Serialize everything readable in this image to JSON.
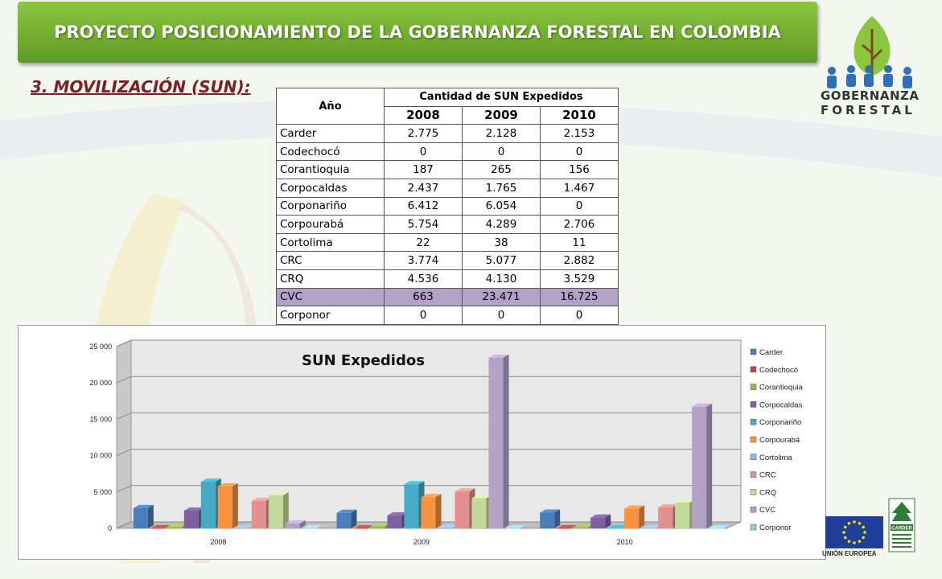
{
  "header": {
    "title": "PROYECTO POSICIONAMIENTO DE LA GOBERNANZA FORESTAL EN COLOMBIA"
  },
  "section_title": "3. MOVILIZACIÓN (SUN):",
  "logo": {
    "line1": "GOBERNANZA",
    "line2": "FORESTAL"
  },
  "table": {
    "col_year": "Año",
    "col_group": "Cantidad de SUN Expedidos",
    "years": [
      "2008",
      "2009",
      "2010"
    ],
    "rows": [
      {
        "name": "Carder",
        "values": [
          "2.775",
          "2.128",
          "2.153"
        ]
      },
      {
        "name": "Codechocó",
        "values": [
          "0",
          "0",
          "0"
        ]
      },
      {
        "name": "Corantioquia",
        "values": [
          "187",
          "265",
          "156"
        ]
      },
      {
        "name": "Corpocaldas",
        "values": [
          "2.437",
          "1.765",
          "1.467"
        ]
      },
      {
        "name": "Corponariño",
        "values": [
          "6.412",
          "6.054",
          "0"
        ]
      },
      {
        "name": "Corpourabá",
        "values": [
          "5.754",
          "4.289",
          "2.706"
        ]
      },
      {
        "name": "Cortolima",
        "values": [
          "22",
          "38",
          "11"
        ]
      },
      {
        "name": "CRC",
        "values": [
          "3.774",
          "5.077",
          "2.882"
        ]
      },
      {
        "name": "CRQ",
        "values": [
          "4.536",
          "4.130",
          "3.529"
        ]
      },
      {
        "name": "CVC",
        "values": [
          "663",
          "23.471",
          "16.725"
        ]
      },
      {
        "name": "Corponor",
        "values": [
          "0",
          "0",
          "0"
        ]
      }
    ]
  },
  "chart_data": {
    "type": "bar",
    "title": "SUN Expedidos",
    "categories": [
      "2008",
      "2009",
      "2010"
    ],
    "ylim": [
      0,
      25000
    ],
    "yticks": [
      0,
      5000,
      10000,
      15000,
      20000,
      25000
    ],
    "ytick_labels": [
      "0",
      "5 000",
      "10 000",
      "15 000",
      "20 000",
      "25 000"
    ],
    "legend_position": "right",
    "grid": true,
    "series": [
      {
        "name": "Carder",
        "color": "#4a7ebb",
        "values": [
          2775,
          2128,
          2153
        ]
      },
      {
        "name": "Codechocó",
        "color": "#be4b48",
        "values": [
          0,
          0,
          0
        ]
      },
      {
        "name": "Corantioquia",
        "color": "#98b954",
        "values": [
          187,
          265,
          156
        ]
      },
      {
        "name": "Corpocaldas",
        "color": "#7d60a0",
        "values": [
          2437,
          1765,
          1467
        ]
      },
      {
        "name": "Corponariño",
        "color": "#46aac5",
        "values": [
          6412,
          6054,
          0
        ]
      },
      {
        "name": "Corpourabá",
        "color": "#f69240",
        "values": [
          5754,
          4289,
          2706
        ]
      },
      {
        "name": "Cortolima",
        "color": "#94b6de",
        "values": [
          22,
          38,
          11
        ]
      },
      {
        "name": "CRC",
        "color": "#e3908e",
        "values": [
          3774,
          5077,
          2882
        ]
      },
      {
        "name": "CRQ",
        "color": "#c3d89b",
        "values": [
          4536,
          4130,
          3529
        ]
      },
      {
        "name": "CVC",
        "color": "#b3a2c7",
        "values": [
          663,
          23471,
          16725
        ]
      },
      {
        "name": "Corponor",
        "color": "#93cddd",
        "values": [
          0,
          0,
          0
        ]
      }
    ]
  },
  "footer_logos": {
    "eu": "UNIÓN EUROPEA",
    "carder": "CARDER"
  }
}
